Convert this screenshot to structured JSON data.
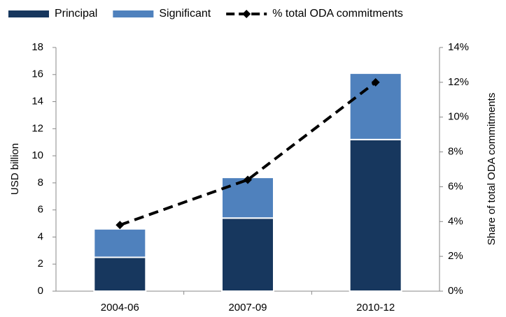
{
  "chart_data": {
    "type": "bar",
    "categories": [
      "2004-06",
      "2007-09",
      "2010-12"
    ],
    "series": [
      {
        "name": "Principal",
        "color": "#17375e",
        "values": [
          2.5,
          5.4,
          11.2
        ]
      },
      {
        "name": "Significant",
        "color": "#4f81bd",
        "values": [
          2.1,
          3.0,
          4.9
        ]
      },
      {
        "name": "% total ODA commitments",
        "color": "#000000",
        "values": [
          3.8,
          6.4,
          12.0
        ],
        "axis": "y2",
        "type": "line"
      }
    ],
    "stacked": true,
    "ylabel": "USD billion",
    "y2label": "Share of total ODA commitments",
    "ylim": [
      0,
      18
    ],
    "yticks": [
      0,
      2,
      4,
      6,
      8,
      10,
      12,
      14,
      16,
      18
    ],
    "y2lim": [
      0,
      14
    ],
    "y2ticks": [
      {
        "value": 0,
        "label": "0%"
      },
      {
        "value": 2,
        "label": "2%"
      },
      {
        "value": 4,
        "label": "4%"
      },
      {
        "value": 6,
        "label": "6%"
      },
      {
        "value": 8,
        "label": "8%"
      },
      {
        "value": 10,
        "label": "10%"
      },
      {
        "value": 12,
        "label": "12%"
      },
      {
        "value": 14,
        "label": "14%"
      }
    ],
    "legend": "top"
  }
}
